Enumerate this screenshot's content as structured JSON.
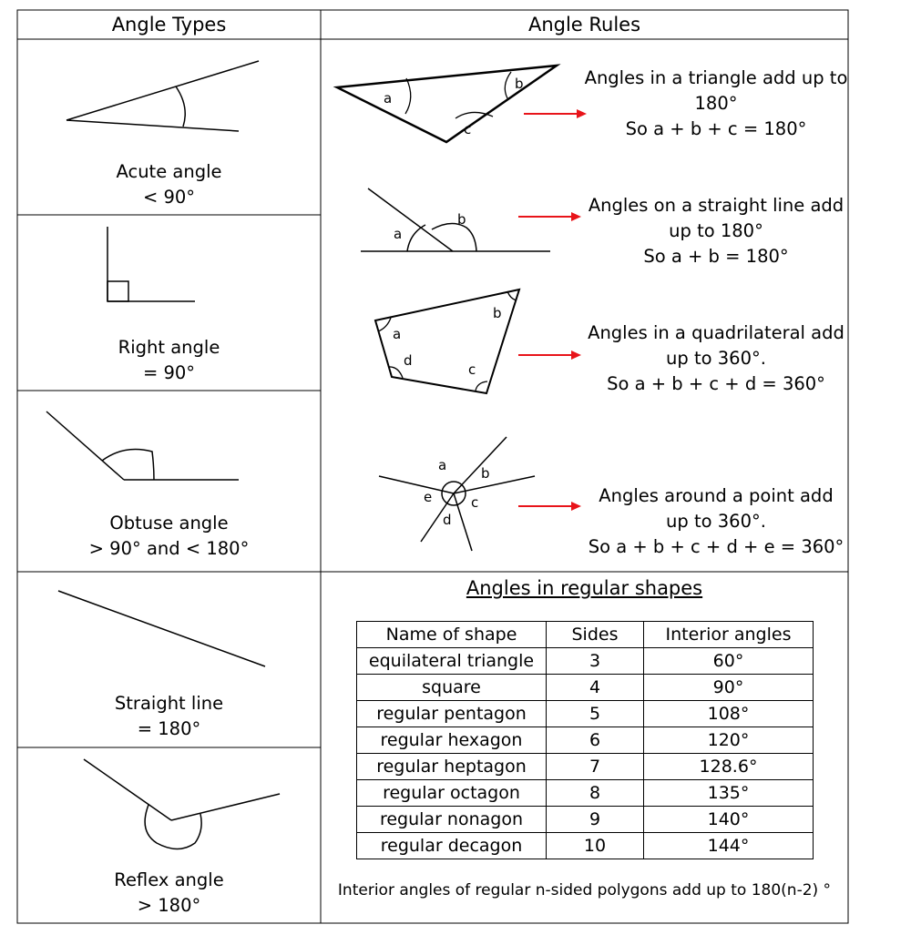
{
  "headers": {
    "left": "Angle Types",
    "right": "Angle Rules"
  },
  "angle_types": [
    {
      "name": "Acute angle",
      "value": "< 90°"
    },
    {
      "name": "Right angle",
      "value": "= 90°"
    },
    {
      "name": "Obtuse angle",
      "value": "> 90° and < 180°"
    },
    {
      "name": "Straight line",
      "value": "= 180°"
    },
    {
      "name": "Reflex angle",
      "value": "> 180°"
    }
  ],
  "angle_rules": [
    {
      "line1": "Angles in a triangle add up to",
      "line2": "180°",
      "line3": "So a + b + c = 180°"
    },
    {
      "line1": "Angles on a straight line add",
      "line2": "up to 180°",
      "line3": "So a + b = 180°"
    },
    {
      "line1": "Angles in a quadrilateral add",
      "line2": "up to 360°.",
      "line3": "So a + b + c + d = 360°"
    },
    {
      "line1": "Angles around a point add",
      "line2": "up to 360°.",
      "line3": "So a + b + c + d + e = 360°"
    }
  ],
  "diagram_labels": {
    "triangle": [
      "a",
      "b",
      "c"
    ],
    "straight_line": [
      "a",
      "b"
    ],
    "quadrilateral": [
      "a",
      "b",
      "c",
      "d"
    ],
    "point": [
      "a",
      "b",
      "c",
      "d",
      "e"
    ]
  },
  "regular_shapes": {
    "title": "Angles in regular shapes",
    "columns": [
      "Name of shape",
      "Sides",
      "Interior angles"
    ],
    "rows": [
      [
        "equilateral triangle",
        "3",
        "60°"
      ],
      [
        "square",
        "4",
        "90°"
      ],
      [
        "regular pentagon",
        "5",
        "108°"
      ],
      [
        "regular hexagon",
        "6",
        "120°"
      ],
      [
        "regular heptagon",
        "7",
        "128.6°"
      ],
      [
        "regular octagon",
        "8",
        "135°"
      ],
      [
        "regular nonagon",
        "9",
        "140°"
      ],
      [
        "regular decagon",
        "10",
        "144°"
      ]
    ],
    "footnote": "Interior angles of regular n-sided polygons add up to 180(n-2) °"
  },
  "colors": {
    "arrow": "#e8141a",
    "lines": "#000000"
  }
}
